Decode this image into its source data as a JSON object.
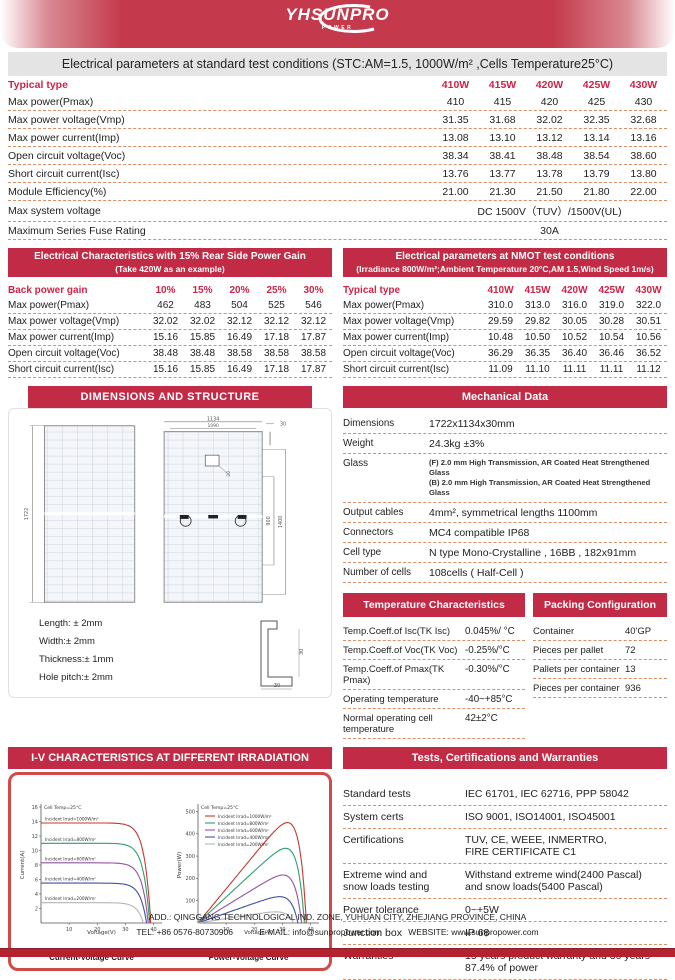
{
  "brand": {
    "logo_text": "YHSUNPRO",
    "logo_sub": "POWER"
  },
  "stc": {
    "banner": "Electrical parameters at standard test conditions (STC:AM=1.5, 1000W/m² ,Cells Temperature25°C)",
    "header_label": "Typical type",
    "columns": [
      "410W",
      "415W",
      "420W",
      "425W",
      "430W"
    ],
    "rows": [
      {
        "label": "Max power(Pmax)",
        "values": [
          "410",
          "415",
          "420",
          "425",
          "430"
        ]
      },
      {
        "label": "Max power voltage(Vmp)",
        "values": [
          "31.35",
          "31.68",
          "32.02",
          "32.35",
          "32.68"
        ]
      },
      {
        "label": "Max power current(Imp)",
        "values": [
          "13.08",
          "13.10",
          "13.12",
          "13.14",
          "13.16"
        ]
      },
      {
        "label": "Open circuit voltage(Voc)",
        "values": [
          "38.34",
          "38.41",
          "38.48",
          "38.54",
          "38.60"
        ]
      },
      {
        "label": "Short circuit current(Isc)",
        "values": [
          "13.76",
          "13.77",
          "13.78",
          "13.79",
          "13.80"
        ]
      },
      {
        "label": "Module Efficiency(%)",
        "values": [
          "21.00",
          "21.30",
          "21.50",
          "21.80",
          "22.00"
        ]
      }
    ],
    "span_rows": [
      {
        "label": "Max system voltage",
        "value": "DC 1500V（TUV）/1500V(UL)"
      },
      {
        "label": "Maximum Series Fuse Rating",
        "value": "30A"
      }
    ]
  },
  "rear_gain": {
    "title1": "Electrical Characteristics with 15% Rear Side Power Gain",
    "title2": "(Take 420W as an example)",
    "header_label": "Back power gain",
    "columns": [
      "10%",
      "15%",
      "20%",
      "25%",
      "30%"
    ],
    "rows": [
      {
        "label": "Max power(Pmax)",
        "values": [
          "462",
          "483",
          "504",
          "525",
          "546"
        ]
      },
      {
        "label": "Max power voltage(Vmp)",
        "values": [
          "32.02",
          "32.02",
          "32.12",
          "32.12",
          "32.12"
        ]
      },
      {
        "label": "Max power current(Imp)",
        "values": [
          "15.16",
          "15.85",
          "16.49",
          "17.18",
          "17.87"
        ]
      },
      {
        "label": "Open circuit voltage(Voc)",
        "values": [
          "38.48",
          "38.48",
          "38.58",
          "38.58",
          "38.58"
        ]
      },
      {
        "label": "Short circuit current(Isc)",
        "values": [
          "15.16",
          "15.85",
          "16.49",
          "17.18",
          "17.87"
        ]
      }
    ]
  },
  "nmot": {
    "title1": "Electrical parameters at NMOT test conditions",
    "title2": "(Irradiance 800W/m²;Ambient Temperature 20°C,AM 1.5,Wind Speed 1m/s)",
    "header_label": "Typical type",
    "columns": [
      "410W",
      "415W",
      "420W",
      "425W",
      "430W"
    ],
    "rows": [
      {
        "label": "Max power(Pmax)",
        "values": [
          "310.0",
          "313.0",
          "316.0",
          "319.0",
          "322.0"
        ]
      },
      {
        "label": "Max power voltage(Vmp)",
        "values": [
          "29.59",
          "29.82",
          "30.05",
          "30.28",
          "30.51"
        ]
      },
      {
        "label": "Max power current(Imp)",
        "values": [
          "10.48",
          "10.50",
          "10.52",
          "10.54",
          "10.56"
        ]
      },
      {
        "label": "Open circuit voltage(Voc)",
        "values": [
          "36.29",
          "36.35",
          "36.40",
          "36.46",
          "36.52"
        ]
      },
      {
        "label": "Short circuit current(Isc)",
        "values": [
          "11.09",
          "11.10",
          "11.11",
          "11.11",
          "11.12"
        ]
      }
    ]
  },
  "dimensions_section": {
    "title": "DIMENSIONS AND STRUCTURE",
    "labels": {
      "panel_height": "1722",
      "panel_width": "1134",
      "inner_width": "1090",
      "thickness": "30",
      "junction_box": "20",
      "hole_pitch_inner": "900",
      "hole_pitch_outer": "1400",
      "frame_side": "30",
      "frame_bottom": "30"
    },
    "tolerances": [
      "Length: ± 2mm",
      "Width:± 2mm",
      "Thickness:± 1mm",
      "Hole pitch:± 2mm"
    ]
  },
  "mechanical": {
    "title": "Mechanical Data",
    "rows": [
      {
        "label": "Dimensions",
        "value": "1722x1134x30mm"
      },
      {
        "label": "Weight",
        "value": "24.3kg ±3%"
      },
      {
        "label": "Glass",
        "value": "(F) 2.0 mm High Transmission, AR Coated Heat Strengthened Glass\n(B) 2.0 mm High Transmission, AR Coated Heat Strengthened Glass",
        "small": true
      },
      {
        "label": "Output cables",
        "value": "4mm², symmetrical lengths 1100mm"
      },
      {
        "label": "Connectors",
        "value": "MC4 compatible IP68"
      },
      {
        "label": "Cell type",
        "value": "N type Mono-Crystalline , 16BB , 182x91mm"
      },
      {
        "label": "Number of cells",
        "value": "108cells ( Half-Cell )"
      }
    ]
  },
  "temperature": {
    "title": "Temperature Characteristics",
    "rows": [
      {
        "label": "Temp.Coeff.of Isc(TK Isc)",
        "value": "0.045%/ °C"
      },
      {
        "label": "Temp.Coeff.of Voc(TK Voc)",
        "value": "-0.25%/°C"
      },
      {
        "label": "Temp.Coeff.of Pmax(TK Pmax)",
        "value": "-0.30%/°C"
      },
      {
        "label": "Operating temperature",
        "value": "-40~+85°C"
      },
      {
        "label": "Normal operating cell\ntemperature",
        "value": "42±2°C"
      }
    ]
  },
  "packing": {
    "title": "Packing Configuration",
    "rows": [
      {
        "label": "Container",
        "value": "40'GP"
      },
      {
        "label": "Pieces per pallet",
        "value": "72"
      },
      {
        "label": "Pallets per container",
        "value": "13"
      },
      {
        "label": "Pieces per container",
        "value": "936"
      }
    ]
  },
  "iv_section": {
    "title": "I-V CHARACTERISTICS AT DIFFERENT IRRADIATION"
  },
  "chart_data": [
    {
      "type": "line",
      "kind": "iv",
      "title": "Current-Voltage Curve",
      "xlabel": "Voltage(V)",
      "ylabel": "Current(A)",
      "xlim": [
        0,
        43
      ],
      "ylim": [
        0,
        16
      ],
      "xticks": [
        10,
        20,
        30,
        40
      ],
      "yticks": [
        2,
        4,
        6,
        8,
        10,
        12,
        14,
        16
      ],
      "annotation": "Cell Temp=25°C",
      "grid": false,
      "legend_position": "inline-labels",
      "series": [
        {
          "name": "Incident Irrad=1000W/m²",
          "color": "#c8372d",
          "isc": 13.8,
          "voc": 39.0
        },
        {
          "name": "Incident Irrad=800W/m²",
          "color": "#2e9e6b",
          "isc": 11.0,
          "voc": 38.6
        },
        {
          "name": "Incident Irrad=600W/m²",
          "color": "#9551a8",
          "isc": 8.3,
          "voc": 38.1
        },
        {
          "name": "Incident Irrad=400W/m²",
          "color": "#3f51a3",
          "isc": 5.5,
          "voc": 37.5
        },
        {
          "name": "Incident Irrad=200W/m²",
          "color": "#b5b5b5",
          "isc": 2.8,
          "voc": 36.4
        }
      ]
    },
    {
      "type": "line",
      "kind": "pv",
      "title": "Power-Voltage Curve",
      "xlabel": "Voltage(V)",
      "ylabel": "Power(W)",
      "xlim": [
        0,
        43
      ],
      "ylim": [
        0,
        520
      ],
      "xticks": [
        10,
        20,
        30,
        40
      ],
      "yticks": [
        100,
        200,
        300,
        400,
        500
      ],
      "annotation": "Cell Temp=25°C",
      "grid": false,
      "legend_position": "top-left",
      "series": [
        {
          "name": "Incident Irrad=1000W/m²",
          "color": "#c8372d",
          "pmax": 450,
          "voc": 38.5
        },
        {
          "name": "Incident Irrad=800W/m²",
          "color": "#2e9e6b",
          "pmax": 335,
          "voc": 37.8
        },
        {
          "name": "Incident Irrad=600W/m²",
          "color": "#9551a8",
          "pmax": 215,
          "voc": 36.8
        },
        {
          "name": "Incident Irrad=400W/m²",
          "color": "#3f51a3",
          "pmax": 118,
          "voc": 35.5
        },
        {
          "name": "Incident Irrad=200W/m²",
          "color": "#b5b5b5",
          "pmax": 50,
          "voc": 34.0
        }
      ]
    }
  ],
  "tests": {
    "title": "Tests, Certifications and Warranties",
    "rows": [
      {
        "label": "Standard tests",
        "value": "IEC 61701, IEC 62716, PPP 58042"
      },
      {
        "label": "System certs",
        "value": "ISO 9001, ISO14001, ISO45001"
      },
      {
        "label": "Certifications",
        "value": "TUV, CE, WEEE, INMERTRO,\nFIRE CERTIFICATE C1"
      },
      {
        "label": "Extreme wind and\nsnow loads testing",
        "value": "Withstand extreme wind(2400 Pascal)\nand snow loads(5400 Pascal)"
      },
      {
        "label": "Power tolerance",
        "value": "0~+5W"
      },
      {
        "label": "Junction box",
        "value": "IP 68"
      },
      {
        "label": "Warranties",
        "value": "15 years product warranty and 30 years\n87.4% of power"
      }
    ]
  },
  "footer": {
    "address": "ADD.: QINGGANG TECHNOLOGICAL IND. ZONE, YUHUAN CITY, ZHEJIANG PROVINCE, CHINA",
    "tel": "TEL: +86 0576-80730906",
    "email": "E-MAIL: info@sunpropower.com",
    "website": "WEBSITE: www.sunpropower.com"
  }
}
